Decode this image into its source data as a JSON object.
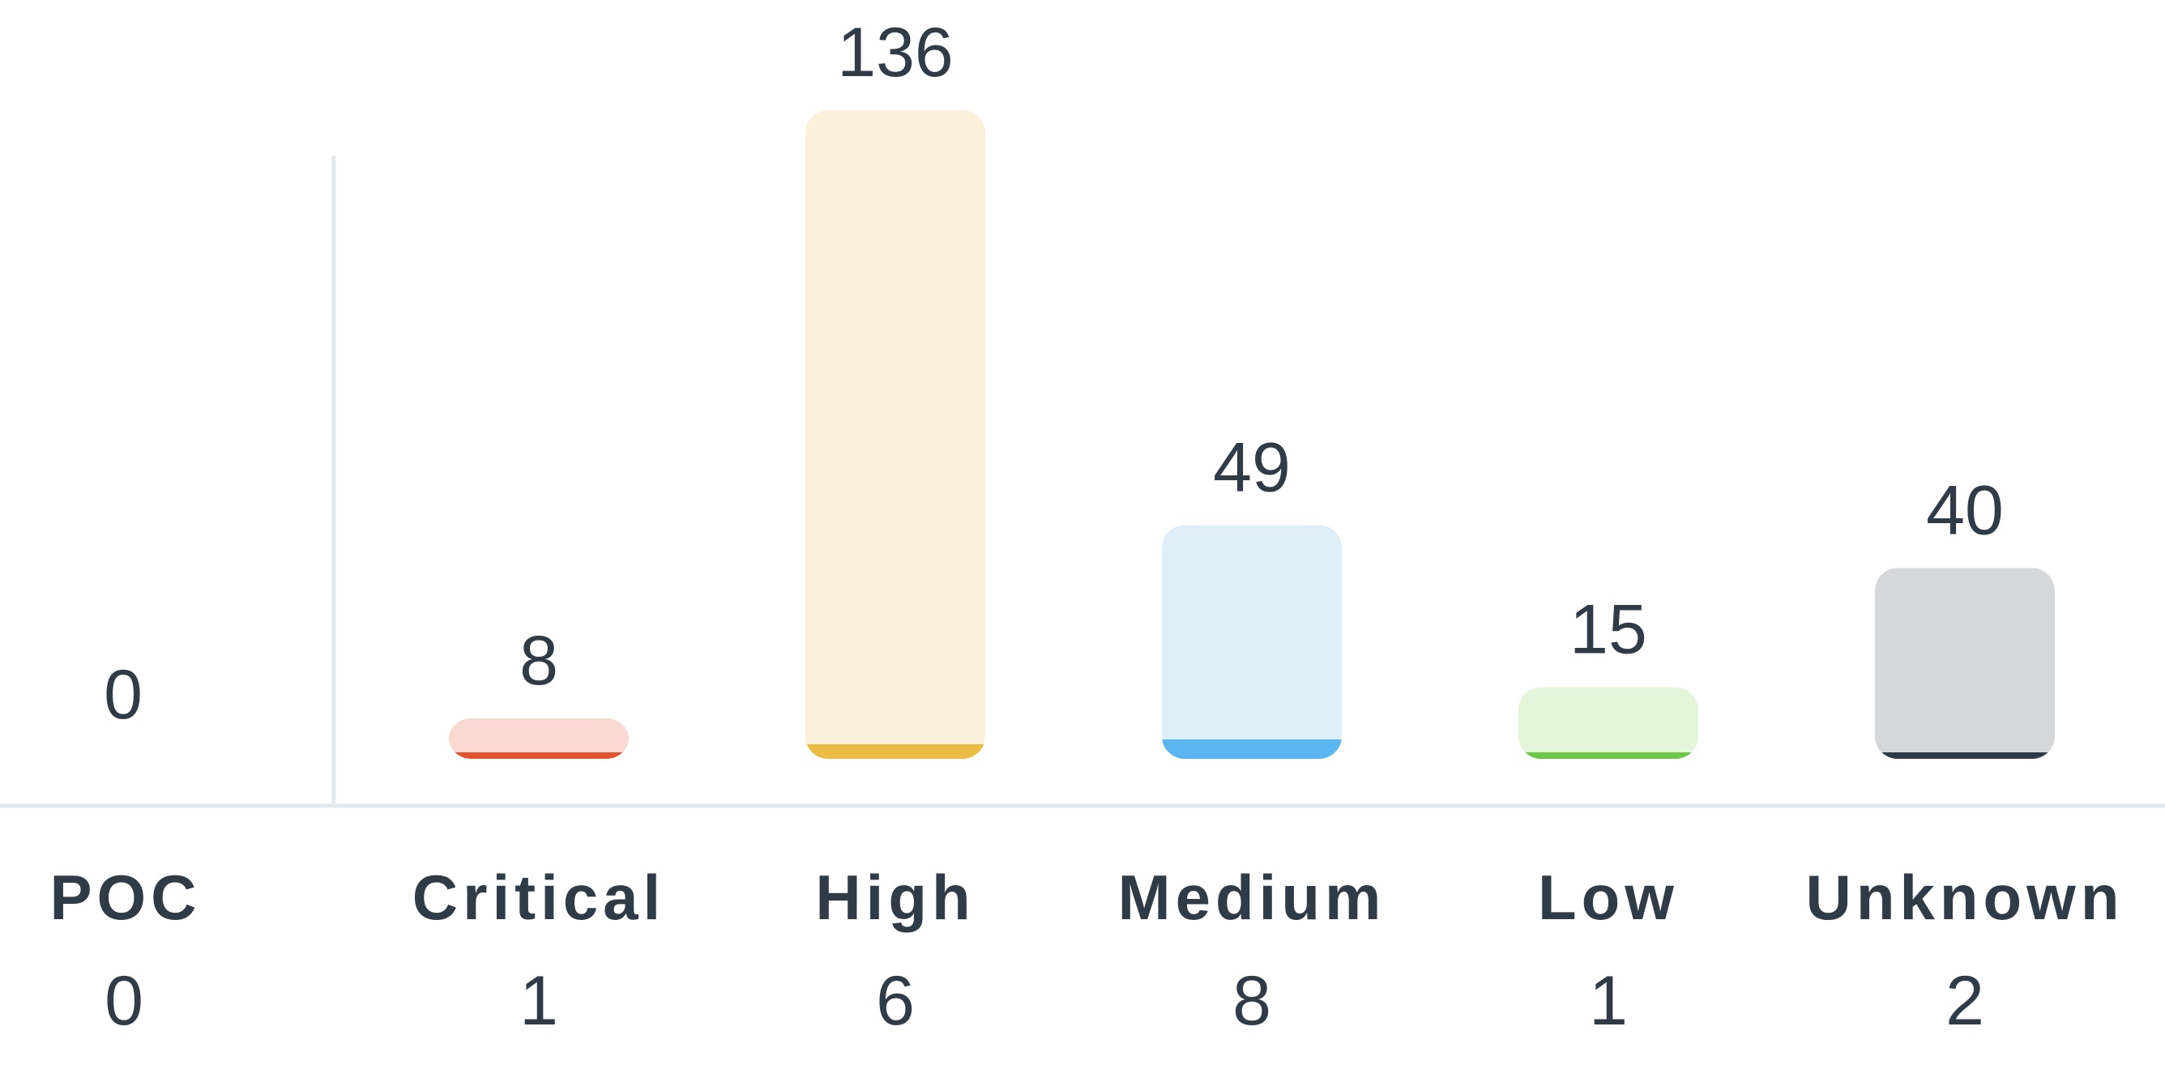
{
  "chart_data": {
    "type": "bar",
    "title": "",
    "xlabel": "",
    "ylabel": "",
    "ylim": [
      0,
      136
    ],
    "grid": false,
    "poc": {
      "label": "POC",
      "value": 0,
      "count": 0
    },
    "categories": [
      "Critical",
      "High",
      "Medium",
      "Low",
      "Unknown"
    ],
    "values": [
      8,
      136,
      49,
      15,
      40
    ],
    "counts": [
      1,
      6,
      8,
      1,
      2
    ],
    "highlight_values": [
      1,
      6,
      8,
      1,
      2
    ],
    "colors": {
      "Critical": {
        "light": "#fbd9d3",
        "dark": "#e4532c"
      },
      "High": {
        "light": "#fbf0da",
        "dark": "#ecbd45"
      },
      "Medium": {
        "light": "#dfeffa",
        "dark": "#5ab5f0"
      },
      "Low": {
        "light": "#e5f5da",
        "dark": "#6cc744"
      },
      "Unknown": {
        "light": "#d6d7d9",
        "dark": "#2f3b47"
      }
    },
    "axis_color": "#e3e8ee",
    "text_color": "#2f3b47"
  }
}
